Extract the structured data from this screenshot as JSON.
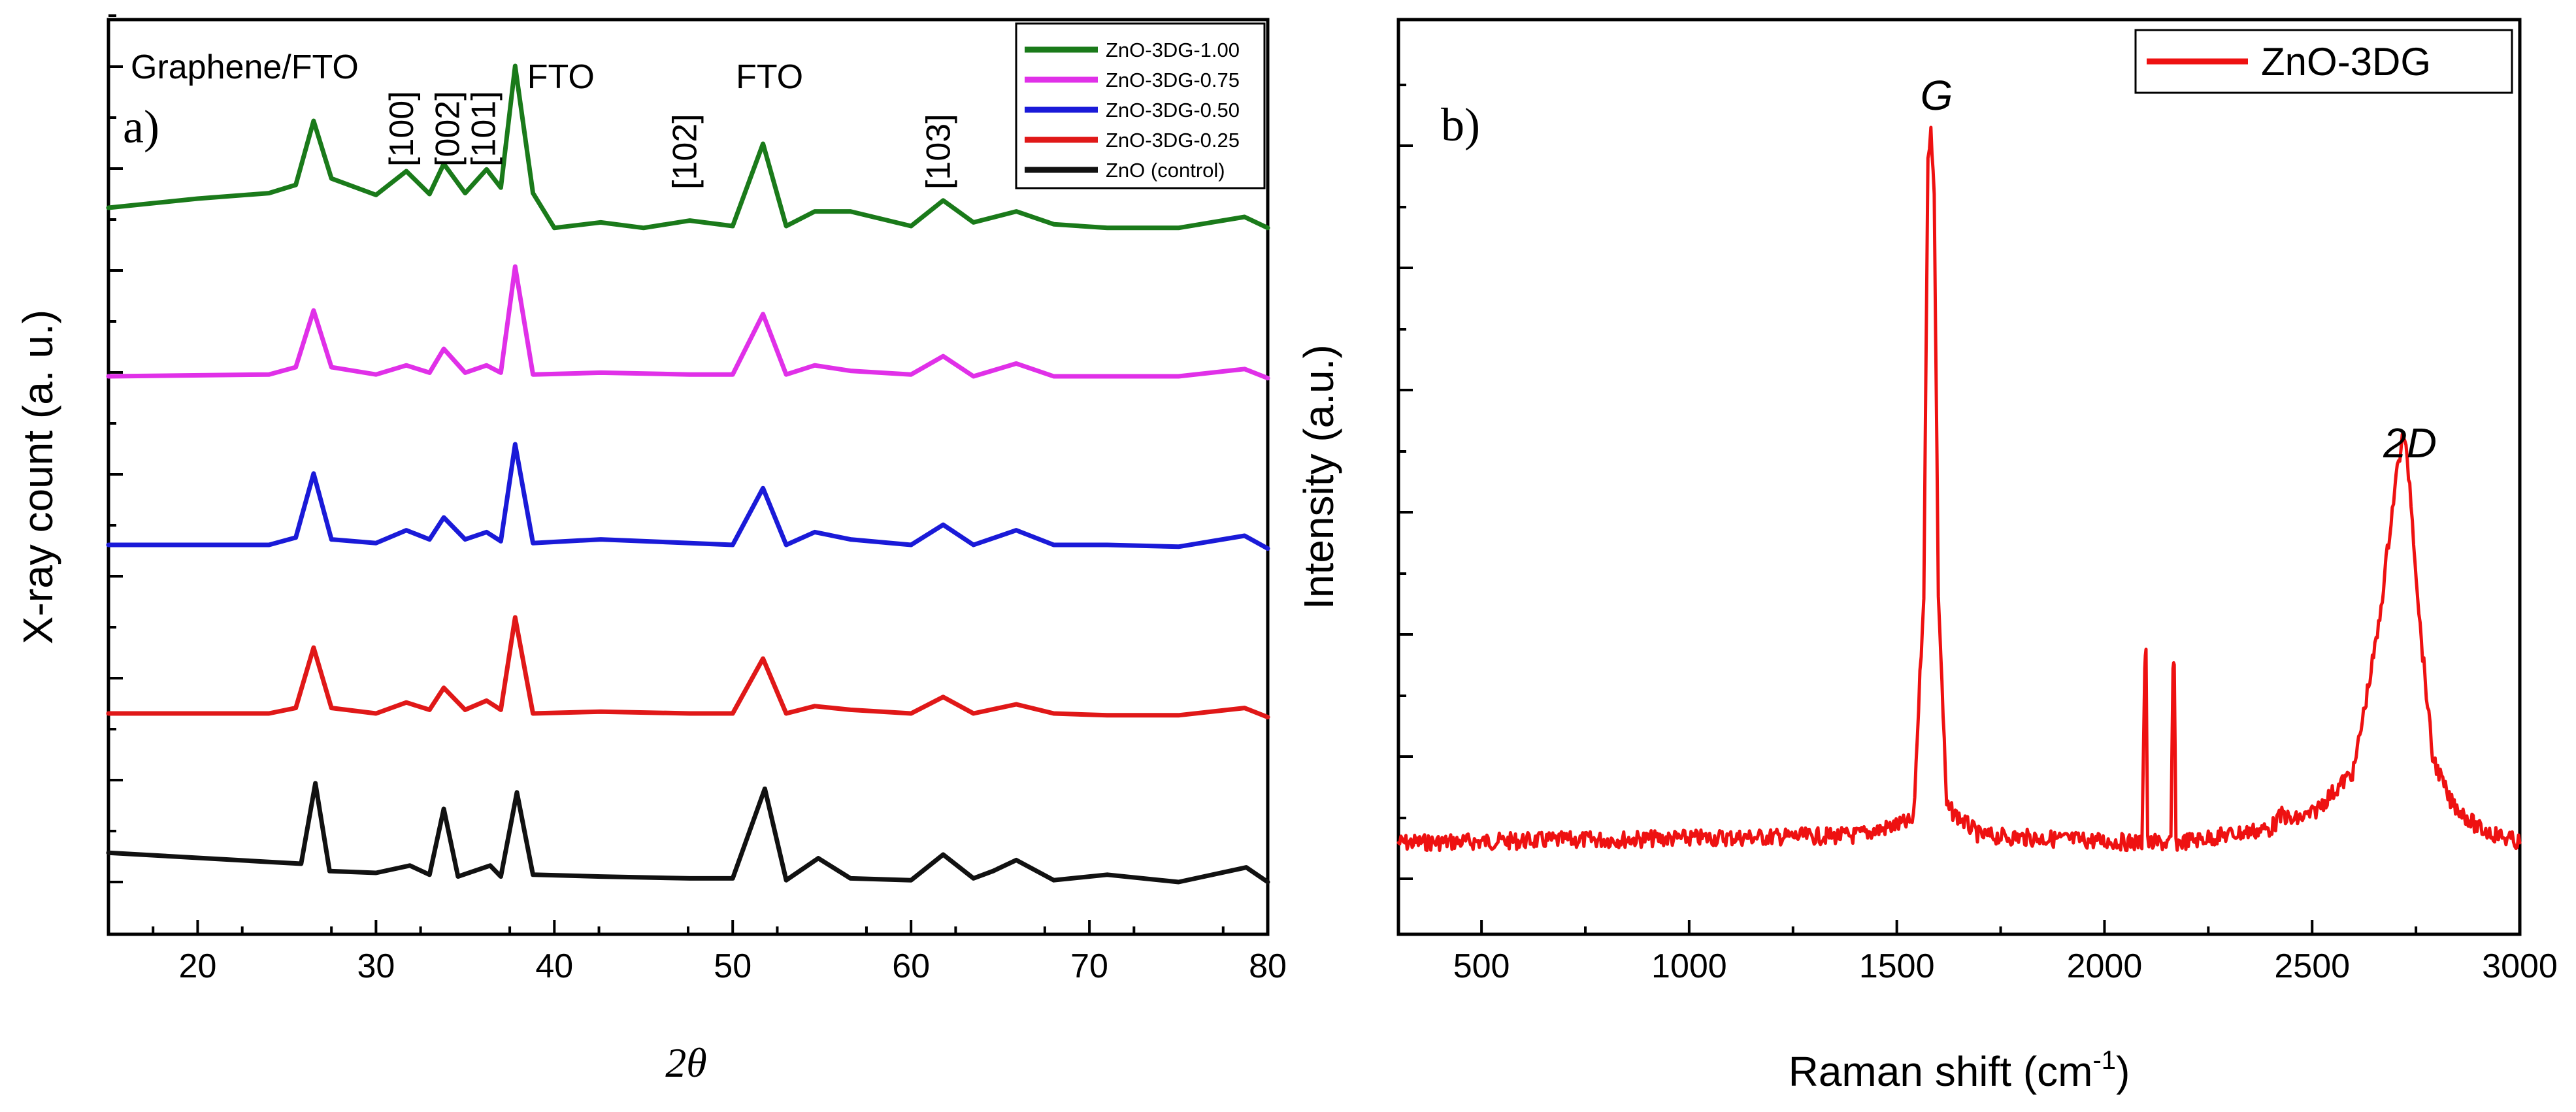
{
  "chart_data": [
    {
      "type": "line",
      "panel_label": "a)",
      "xlabel_symbol": "2θ",
      "ylabel": "X-ray count (a. u.)",
      "xlim": [
        15,
        80
      ],
      "xticks": [
        20,
        30,
        40,
        50,
        60,
        70,
        80
      ],
      "yticks_labeled": false,
      "annotations": [
        {
          "text": "Graphene/FTO",
          "x": 26.5
        },
        {
          "text": "[100]",
          "x": 31.7
        },
        {
          "text": "[002]",
          "x": 34.3
        },
        {
          "text": "[101]",
          "x": 36.3
        },
        {
          "text": "FTO",
          "x": 37.8
        },
        {
          "text": "[102]",
          "x": 47.6
        },
        {
          "text": "FTO",
          "x": 51.7
        },
        {
          "text": "[103]",
          "x": 61.8
        }
      ],
      "legend": {
        "position": "top-right",
        "entries": [
          "ZnO-3DG-1.00",
          "ZnO-3DG-0.75",
          "ZnO-3DG-0.50",
          "ZnO-3DG-0.25",
          "ZnO (control)"
        ]
      },
      "series": [
        {
          "name": "ZnO-3DG-1.00",
          "color": "#1a7a1a",
          "offset": 4.0,
          "x": [
            15,
            20,
            24,
            25.5,
            26.5,
            27.5,
            30,
            31.7,
            33,
            33.8,
            35,
            36.2,
            37,
            37.8,
            38.8,
            40,
            42.6,
            45,
            47.6,
            50,
            51.7,
            53,
            54.6,
            56.6,
            60,
            61.8,
            63.5,
            65.9,
            68,
            71,
            75,
            78.7,
            80
          ],
          "y": [
            0.0,
            0.1,
            0.16,
            0.25,
            0.95,
            0.32,
            0.14,
            0.4,
            0.15,
            0.48,
            0.16,
            0.42,
            0.22,
            1.55,
            0.16,
            -0.22,
            -0.16,
            -0.22,
            -0.14,
            -0.2,
            0.7,
            -0.2,
            -0.04,
            -0.04,
            -0.2,
            0.08,
            -0.16,
            -0.04,
            -0.18,
            -0.22,
            -0.22,
            -0.1,
            -0.22
          ]
        },
        {
          "name": "ZnO-3DG-0.75",
          "color": "#e030e8",
          "offset": 3.0,
          "x": [
            15,
            24,
            25.5,
            26.5,
            27.5,
            30,
            31.7,
            33,
            33.8,
            35,
            36.2,
            37,
            37.8,
            38.8,
            42.6,
            47.6,
            50,
            51.7,
            53,
            54.6,
            56.6,
            60,
            61.8,
            63.5,
            65.9,
            68,
            71,
            75,
            78.7,
            80
          ],
          "y": [
            0.0,
            0.02,
            0.1,
            0.72,
            0.1,
            0.02,
            0.12,
            0.04,
            0.3,
            0.04,
            0.12,
            0.04,
            1.2,
            0.02,
            0.04,
            0.02,
            0.02,
            0.68,
            0.02,
            0.12,
            0.06,
            0.02,
            0.22,
            0.0,
            0.14,
            0.0,
            0.0,
            0.0,
            0.08,
            -0.02
          ]
        },
        {
          "name": "ZnO-3DG-0.50",
          "color": "#1a1ad8",
          "offset": 2.0,
          "x": [
            15,
            24,
            25.5,
            26.5,
            27.5,
            30,
            31.7,
            33,
            33.8,
            35,
            36.2,
            37,
            37.8,
            38.8,
            42.6,
            47.6,
            50,
            51.7,
            53,
            54.6,
            56.6,
            60,
            61.8,
            63.5,
            65.9,
            68,
            71,
            75,
            78.7,
            80
          ],
          "y": [
            0.0,
            0.0,
            0.08,
            0.78,
            0.06,
            0.02,
            0.16,
            0.06,
            0.3,
            0.06,
            0.14,
            0.04,
            1.1,
            0.02,
            0.06,
            0.02,
            0.0,
            0.62,
            0.0,
            0.14,
            0.06,
            0.0,
            0.22,
            0.0,
            0.16,
            0.0,
            0.0,
            -0.02,
            0.1,
            -0.04
          ]
        },
        {
          "name": "ZnO-3DG-0.25",
          "color": "#e01818",
          "offset": 1.0,
          "x": [
            15,
            24,
            25.5,
            26.5,
            27.5,
            30,
            31.7,
            33,
            33.8,
            35,
            36.2,
            37,
            37.8,
            38.8,
            42.6,
            47.6,
            50,
            51.7,
            53,
            54.6,
            56.6,
            60,
            61.8,
            63.5,
            65.9,
            68,
            71,
            75,
            78.7,
            80
          ],
          "y": [
            0.0,
            0.0,
            0.06,
            0.72,
            0.06,
            0.0,
            0.12,
            0.04,
            0.28,
            0.04,
            0.14,
            0.04,
            1.05,
            0.0,
            0.02,
            0.0,
            0.0,
            0.6,
            0.0,
            0.08,
            0.04,
            0.0,
            0.18,
            0.0,
            0.1,
            0.0,
            -0.02,
            -0.02,
            0.06,
            -0.04
          ]
        },
        {
          "name": "ZnO (control)",
          "color": "#111111",
          "offset": 0.0,
          "x": [
            15,
            24,
            25.8,
            26.6,
            27.4,
            30,
            31.9,
            33,
            33.8,
            34.6,
            36.4,
            37,
            37.9,
            38.8,
            42.6,
            47.6,
            50,
            51.8,
            53,
            54.8,
            56.6,
            60,
            61.8,
            63.5,
            64.6,
            65.9,
            68,
            71,
            75,
            78.8,
            80
          ],
          "y": [
            0.32,
            0.22,
            0.2,
            1.08,
            0.12,
            0.1,
            0.18,
            0.08,
            0.8,
            0.06,
            0.18,
            0.06,
            0.98,
            0.08,
            0.06,
            0.04,
            0.04,
            1.02,
            0.02,
            0.26,
            0.04,
            0.02,
            0.3,
            0.04,
            0.12,
            0.24,
            0.02,
            0.08,
            0.0,
            0.16,
            0.0
          ]
        }
      ]
    },
    {
      "type": "line",
      "panel_label": "b)",
      "xlabel": "Raman shift (cm",
      "xlabel_sup": "-1",
      "xlabel_close": ")",
      "ylabel": "Intensity (a.u.)",
      "xlim": [
        300,
        3000
      ],
      "xticks": [
        500,
        1000,
        1500,
        2000,
        2500,
        3000
      ],
      "yticks_labeled": false,
      "annotations": [
        {
          "text": "G",
          "x": 1580
        },
        {
          "text": "2D",
          "x": 2720
        }
      ],
      "legend": {
        "position": "top-right",
        "entries": [
          "ZnO-3DG"
        ]
      },
      "series": [
        {
          "name": "ZnO-3DG",
          "color": "#ee1111",
          "x": [
            300,
            1400,
            1540,
            1565,
            1575,
            1582,
            1590,
            1600,
            1620,
            1700,
            2090,
            2097,
            2100,
            2104,
            2160,
            2165,
            2168,
            2172,
            2400,
            2430,
            2450,
            2500,
            2600,
            2660,
            2690,
            2705,
            2720,
            2735,
            2760,
            2790,
            2830,
            2900,
            3000
          ],
          "y": [
            0.0,
            0.01,
            0.03,
            0.35,
            0.95,
            1.0,
            0.9,
            0.35,
            0.05,
            0.01,
            0.0,
            0.25,
            0.27,
            0.0,
            0.0,
            0.24,
            0.25,
            0.0,
            0.02,
            0.04,
            0.03,
            0.04,
            0.1,
            0.3,
            0.45,
            0.52,
            0.57,
            0.5,
            0.3,
            0.12,
            0.06,
            0.02,
            0.0
          ]
        }
      ]
    }
  ]
}
